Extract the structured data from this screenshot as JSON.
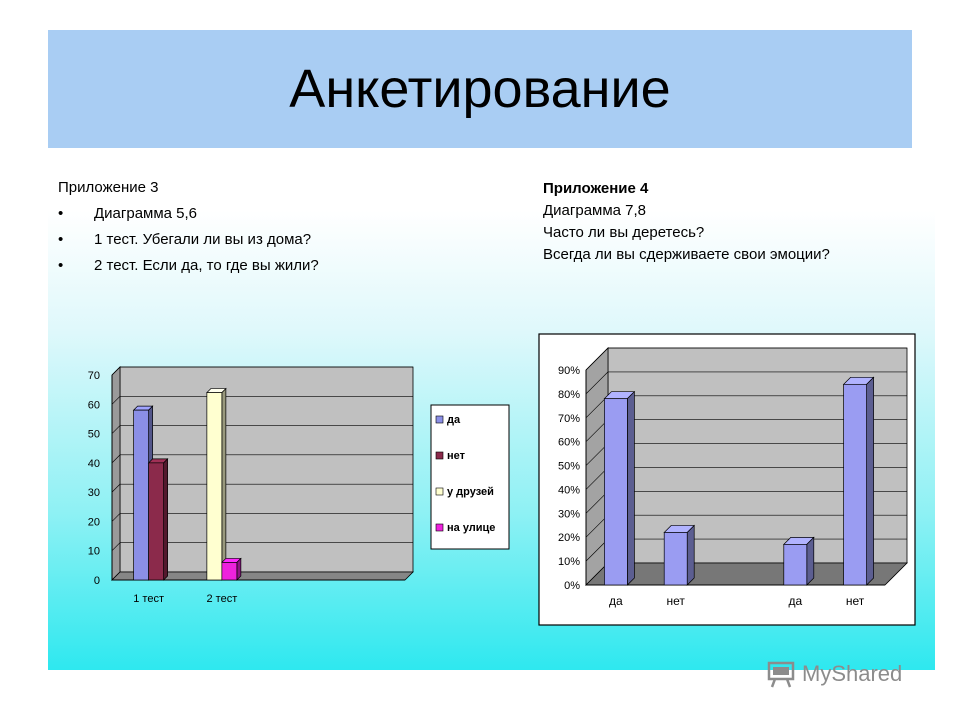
{
  "slide": {
    "title": "Анкетирование"
  },
  "left_block": {
    "heading": "Приложение 3",
    "bullets": [
      "Диаграмма 5,6",
      "1 тест. Убегали ли вы из дома?",
      "2 тест. Если да, то где вы жили?"
    ],
    "bullet_symbol": "•"
  },
  "right_block": {
    "heading": "Приложение 4",
    "lines": [
      "Диаграмма 7,8",
      "Часто ли вы деретесь?",
      "Всегда ли вы сдерживаете свои эмоции?"
    ]
  },
  "chart_data": [
    {
      "type": "bar",
      "categories": [
        "1 тест",
        "2 тест"
      ],
      "series": [
        {
          "name": "да",
          "values": [
            58,
            null
          ],
          "color": "#8b8fe6"
        },
        {
          "name": "нет",
          "values": [
            40,
            null
          ],
          "color": "#8b2a4b"
        },
        {
          "name": "у друзей",
          "values": [
            null,
            64
          ],
          "color": "#ffffd0"
        },
        {
          "name": "на улице",
          "values": [
            null,
            6
          ],
          "color": "#ee22dd"
        }
      ],
      "yticks": [
        "0",
        "10",
        "20",
        "30",
        "40",
        "50",
        "60",
        "70"
      ],
      "ylim": [
        0,
        70
      ],
      "grid": true,
      "legend": "right",
      "plot_color": "#c0c0c0"
    },
    {
      "type": "bar",
      "categories": [
        "да",
        "нет",
        "да",
        "нет"
      ],
      "values": [
        78,
        22,
        17,
        84
      ],
      "unit": "%",
      "yticks": [
        "0%",
        "10%",
        "20%",
        "30%",
        "40%",
        "50%",
        "60%",
        "70%",
        "80%",
        "90%"
      ],
      "ylim": [
        0,
        90
      ],
      "grid": true,
      "legend": "none",
      "bar_color": "#9a9cf2",
      "plot_color": "#c0c0c0"
    }
  ],
  "watermark": {
    "text": "MyShared",
    "icon": "chalkboard-icon"
  }
}
